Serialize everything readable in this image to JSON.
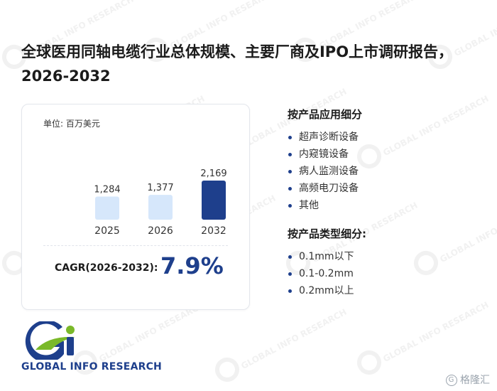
{
  "report": {
    "title": "全球医用同轴电缆行业总体规模、主要厂商及IPO上市调研报告，2026-2032"
  },
  "card": {
    "unit": "单位: 百万美元",
    "cagr_label": "CAGR(2026-2032):",
    "cagr_value": "7.9%"
  },
  "chart_data": {
    "type": "bar",
    "categories": [
      "2025",
      "2026",
      "2032"
    ],
    "values": [
      1284,
      1377,
      2169
    ],
    "value_labels": [
      "1,284",
      "1,377",
      "2,169"
    ],
    "ylim": [
      0,
      2169
    ],
    "colors": [
      "#d6e7fb",
      "#d6e7fb",
      "#1e3f8c"
    ],
    "grid": false
  },
  "segments": {
    "application": {
      "title": "按产品应用细分",
      "items": [
        "超声诊断设备",
        "内窥镜设备",
        "病人监测设备",
        "高频电刀设备",
        "其他"
      ]
    },
    "type": {
      "title": "按产品类型细分:",
      "items": [
        "0.1mm以下",
        "0.1-0.2mm",
        "0.2mm以上"
      ]
    }
  },
  "brand": {
    "logo_text": "GLOBAL INFO RESEARCH",
    "watermark_text": "GLOBAL INFO RESEARCH",
    "corner_badge": "格隆汇",
    "primary_color": "#1e3f8c",
    "accent_color": "#7ab929"
  }
}
